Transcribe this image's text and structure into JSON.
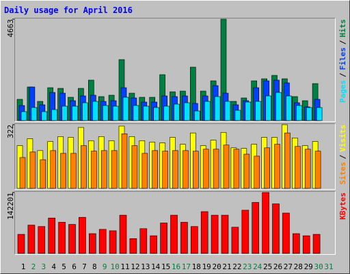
{
  "chart_data": [
    {
      "type": "bar",
      "title": "Daily usage for April 2016",
      "legend_separator": "/",
      "ylim": [
        0,
        4663
      ],
      "yticks": [
        4663
      ],
      "series": [
        {
          "name": "Hits",
          "color": "#008040",
          "values": [
            977,
            1544,
            882,
            1512,
            1481,
            1071,
            1481,
            1859,
            1103,
            1166,
            2804,
            1260,
            1071,
            1071,
            2111,
            1323,
            1355,
            2457,
            1355,
            1827,
            4663,
            882,
            1040,
            1827,
            1922,
            2079,
            1922,
            1103,
            914,
            1701,
            0
          ]
        },
        {
          "name": "Files",
          "color": "#0040ff",
          "values": [
            693,
            1544,
            725,
            1292,
            1260,
            914,
            1134,
            1166,
            882,
            914,
            1512,
            1040,
            851,
            851,
            1134,
            1103,
            1134,
            788,
            1134,
            1607,
            1260,
            725,
            914,
            1512,
            1827,
            1859,
            1733,
            819,
            630,
            977,
            0
          ]
        },
        {
          "name": "Pages",
          "color": "#00e0ff",
          "values": [
            410,
            599,
            410,
            504,
            662,
            662,
            819,
            882,
            693,
            662,
            1071,
            693,
            662,
            599,
            662,
            756,
            819,
            441,
            882,
            1103,
            882,
            473,
            851,
            882,
            1134,
            1292,
            1134,
            693,
            599,
            599,
            0
          ]
        }
      ]
    },
    {
      "type": "bar",
      "ylim": [
        0,
        322
      ],
      "yticks": [
        322
      ],
      "series": [
        {
          "name": "Visits",
          "color": "#ffff00",
          "values": [
            216,
            251,
            191,
            237,
            262,
            258,
            308,
            241,
            262,
            241,
            315,
            262,
            241,
            234,
            230,
            258,
            223,
            280,
            216,
            244,
            283,
            205,
            202,
            223,
            258,
            258,
            322,
            255,
            216,
            237,
            0
          ]
        },
        {
          "name": "Sites",
          "color": "#ff8000",
          "values": [
            156,
            184,
            145,
            191,
            177,
            177,
            216,
            188,
            191,
            191,
            276,
            216,
            177,
            191,
            188,
            191,
            191,
            188,
            198,
            198,
            219,
            198,
            173,
            163,
            205,
            223,
            280,
            212,
            198,
            188,
            0
          ]
        }
      ]
    },
    {
      "type": "bar",
      "ylim": [
        0,
        142201
      ],
      "yticks": [
        142201
      ],
      "categories": [
        "1",
        "2",
        "3",
        "4",
        "5",
        "6",
        "7",
        "8",
        "9",
        "10",
        "11",
        "12",
        "13",
        "14",
        "15",
        "16",
        "17",
        "18",
        "19",
        "20",
        "21",
        "22",
        "23",
        "24",
        "25",
        "26",
        "27",
        "28",
        "29",
        "30",
        "31"
      ],
      "category_colors": [
        "#000000",
        "#008040",
        "#008040",
        "#000000",
        "#000000",
        "#000000",
        "#000000",
        "#000000",
        "#008040",
        "#008040",
        "#000000",
        "#000000",
        "#000000",
        "#000000",
        "#000000",
        "#008040",
        "#008040",
        "#000000",
        "#000000",
        "#000000",
        "#000000",
        "#000000",
        "#008040",
        "#008040",
        "#000000",
        "#000000",
        "#000000",
        "#000000",
        "#000000",
        "#008040",
        "#008040"
      ],
      "series": [
        {
          "name": "KBytes",
          "color": "#ff0000",
          "values": [
            44645,
            66140,
            62833,
            82675,
            72754,
            67794,
            84329,
            46298,
            56219,
            52912,
            89289,
            34724,
            57873,
            41338,
            71101,
            89289,
            72754,
            62833,
            97557,
            89289,
            89289,
            61180,
            100864,
            119052,
            142201,
            115745,
            94250,
            46298,
            41338,
            44645,
            0
          ]
        }
      ]
    }
  ]
}
